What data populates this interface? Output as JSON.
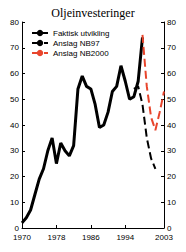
{
  "chart_data": {
    "type": "line",
    "title": "Oljeinvesteringer",
    "xlim": [
      1970,
      2003
    ],
    "xticks": [
      1970,
      1978,
      1986,
      1994,
      2003
    ],
    "ylim": [
      0,
      80
    ],
    "yticks": [
      0,
      10,
      20,
      30,
      40,
      50,
      60,
      70,
      80
    ],
    "y2lim": [
      0,
      80
    ],
    "y2ticks": [
      0,
      10,
      20,
      30,
      40,
      50,
      60,
      70,
      80
    ],
    "grid": false,
    "legend": "upper left",
    "series": [
      {
        "name": "Faktisk utvikling",
        "color": "#000000",
        "line_style": "solid",
        "x": [
          1970,
          1971,
          1972,
          1973,
          1974,
          1975,
          1976,
          1977,
          1978,
          1979,
          1980,
          1981,
          1982,
          1983,
          1984,
          1985,
          1986,
          1987,
          1988,
          1989,
          1990,
          1991,
          1992,
          1993,
          1994,
          1995,
          1996,
          1997,
          1998
        ],
        "values": [
          2,
          4,
          7,
          13,
          19,
          23,
          30,
          35,
          25,
          33,
          30,
          28,
          32,
          54,
          59,
          55,
          54,
          48,
          39,
          40,
          45,
          53,
          55,
          63,
          57,
          50,
          51,
          57,
          74
        ]
      },
      {
        "name": "Anslag NB97",
        "color": "#000000",
        "line_style": "dashed",
        "x": [
          1996,
          1997,
          1998,
          1999,
          2000,
          2001
        ],
        "values": [
          54,
          55,
          48,
          35,
          27,
          23
        ]
      },
      {
        "name": "Anslag NB2000",
        "color": "#e8452c",
        "line_style": "dashed",
        "x": [
          1998,
          1999,
          2000,
          2001,
          2002,
          2003
        ],
        "values": [
          75,
          55,
          43,
          38,
          45,
          53
        ]
      }
    ]
  }
}
